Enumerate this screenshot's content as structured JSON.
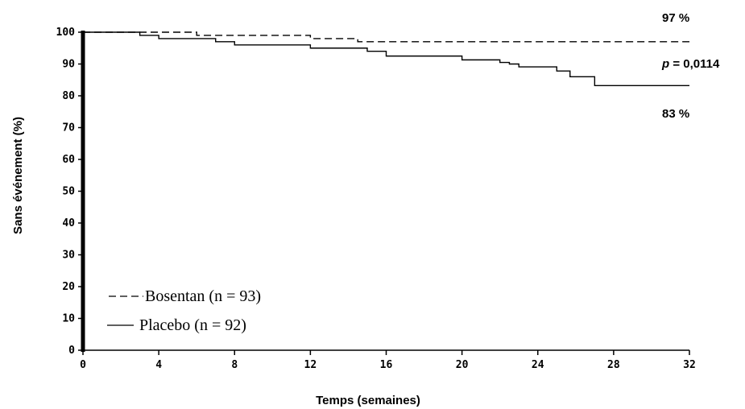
{
  "chart_data": {
    "type": "line",
    "step": true,
    "xlabel": "Temps (semaines)",
    "ylabel": "Sans événement (%)",
    "xlim": [
      0,
      32
    ],
    "ylim": [
      0,
      100
    ],
    "xticks": [
      0,
      4,
      8,
      12,
      16,
      20,
      24,
      28,
      32
    ],
    "yticks": [
      0,
      10,
      20,
      30,
      40,
      50,
      60,
      70,
      80,
      90,
      100
    ],
    "grid": false,
    "legend_position": "bottom-left",
    "series": [
      {
        "name": "Bosentan (n = 93)",
        "style": "dashed",
        "color": "#000000",
        "x": [
          0,
          6,
          12,
          14.5,
          32
        ],
        "y": [
          100,
          99,
          98,
          97,
          97
        ]
      },
      {
        "name": "Placebo (n = 92)",
        "style": "solid",
        "color": "#000000",
        "x": [
          0,
          3,
          4,
          7,
          8,
          12,
          15,
          16,
          20,
          22,
          22.5,
          23,
          25,
          25.7,
          27,
          32
        ],
        "y": [
          100,
          99,
          98,
          97,
          96,
          95,
          94,
          92.5,
          91.3,
          90.5,
          90,
          89.1,
          87.8,
          86,
          83.2,
          83.2
        ]
      }
    ],
    "annotations": {
      "bosentan_end": "97 %",
      "placebo_end": "83 %",
      "p_label": "p",
      "p_value": " = 0,0114"
    }
  }
}
